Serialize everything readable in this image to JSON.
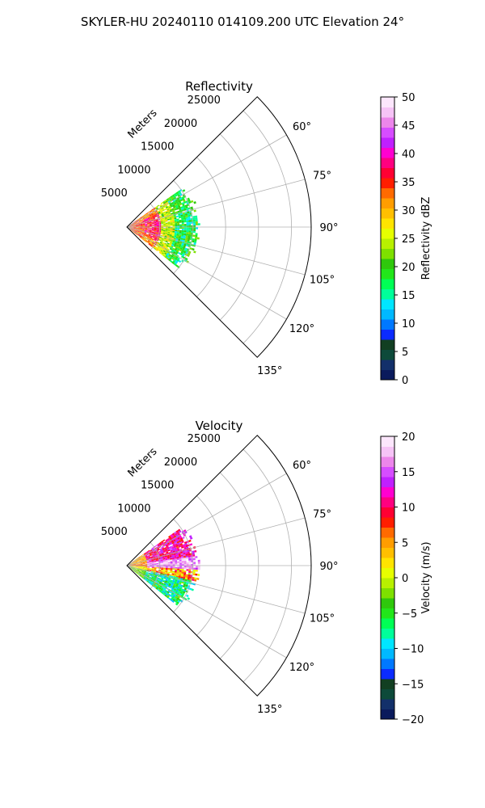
{
  "suptitle": "SKYLER-HU  20240110  014109.200 UTC Elevation 24°",
  "chart_data": [
    {
      "type": "heatmap",
      "title": "Reflectivity",
      "projection": "polar sector (azimuth 45°–135°)",
      "radial_label": "Meters",
      "r_ticks": [
        5000,
        10000,
        15000,
        20000,
        25000
      ],
      "r_tick_labels": [
        "5000",
        "10000",
        "15000",
        "20000",
        "25000"
      ],
      "rlim": [
        0,
        28000
      ],
      "theta_ticks": [
        60,
        75,
        90,
        105,
        120,
        135
      ],
      "theta_tick_labels": [
        "60°",
        "75°",
        "90°",
        "105°",
        "120°",
        "135°"
      ],
      "thetalim": [
        45,
        135
      ],
      "grid": true,
      "echo_extent_m": 11000,
      "colorbar": {
        "label": "Reflectivity dBZ",
        "range": [
          0,
          50
        ],
        "ticks": [
          0,
          5,
          10,
          15,
          20,
          25,
          30,
          35,
          40,
          45,
          50
        ],
        "tick_labels": [
          "0",
          "5",
          "10",
          "15",
          "20",
          "25",
          "30",
          "35",
          "40",
          "45",
          "50"
        ],
        "colors": [
          "#0a1a5c",
          "#13306a",
          "#0d4a3a",
          "#123f22",
          "#0b2bff",
          "#0078ff",
          "#00b9ff",
          "#00e6ff",
          "#00ff9a",
          "#00ff55",
          "#22e61a",
          "#2fc80c",
          "#7ee000",
          "#b8f000",
          "#e6ff00",
          "#ffe400",
          "#ffbf00",
          "#ff9d00",
          "#ff6a00",
          "#ff1e00",
          "#ff0033",
          "#ff0080",
          "#ff00d0",
          "#c020ff",
          "#d64dff",
          "#ec86ea",
          "#f6c3f6",
          "#fce6fc"
        ]
      }
    },
    {
      "type": "heatmap",
      "title": "Velocity",
      "projection": "polar sector (azimuth 45°–135°)",
      "radial_label": "Meters",
      "r_ticks": [
        5000,
        10000,
        15000,
        20000,
        25000
      ],
      "r_tick_labels": [
        "5000",
        "10000",
        "15000",
        "20000",
        "25000"
      ],
      "rlim": [
        0,
        28000
      ],
      "theta_ticks": [
        60,
        75,
        90,
        105,
        120,
        135
      ],
      "theta_tick_labels": [
        "60°",
        "75°",
        "90°",
        "105°",
        "120°",
        "135°"
      ],
      "thetalim": [
        45,
        135
      ],
      "grid": true,
      "echo_extent_m": 11000,
      "colorbar": {
        "label": "Velocity (m/s)",
        "range": [
          -20,
          20
        ],
        "ticks": [
          -20,
          -15,
          -10,
          -5,
          0,
          5,
          10,
          15,
          20
        ],
        "tick_labels": [
          "−20",
          "−15",
          "−10",
          "−5",
          "0",
          "5",
          "10",
          "15",
          "20"
        ],
        "colors": [
          "#0a1a5c",
          "#13306a",
          "#0d4a3a",
          "#123f22",
          "#0b2bff",
          "#0078ff",
          "#00b9ff",
          "#00e6ff",
          "#00ff9a",
          "#00ff55",
          "#22e61a",
          "#2fc80c",
          "#7ee000",
          "#b8f000",
          "#e6ff00",
          "#ffe400",
          "#ffbf00",
          "#ff9d00",
          "#ff6a00",
          "#ff1e00",
          "#ff0033",
          "#ff0080",
          "#ff00d0",
          "#c020ff",
          "#d64dff",
          "#ec86ea",
          "#f6c3f6",
          "#fce6fc"
        ]
      }
    }
  ]
}
